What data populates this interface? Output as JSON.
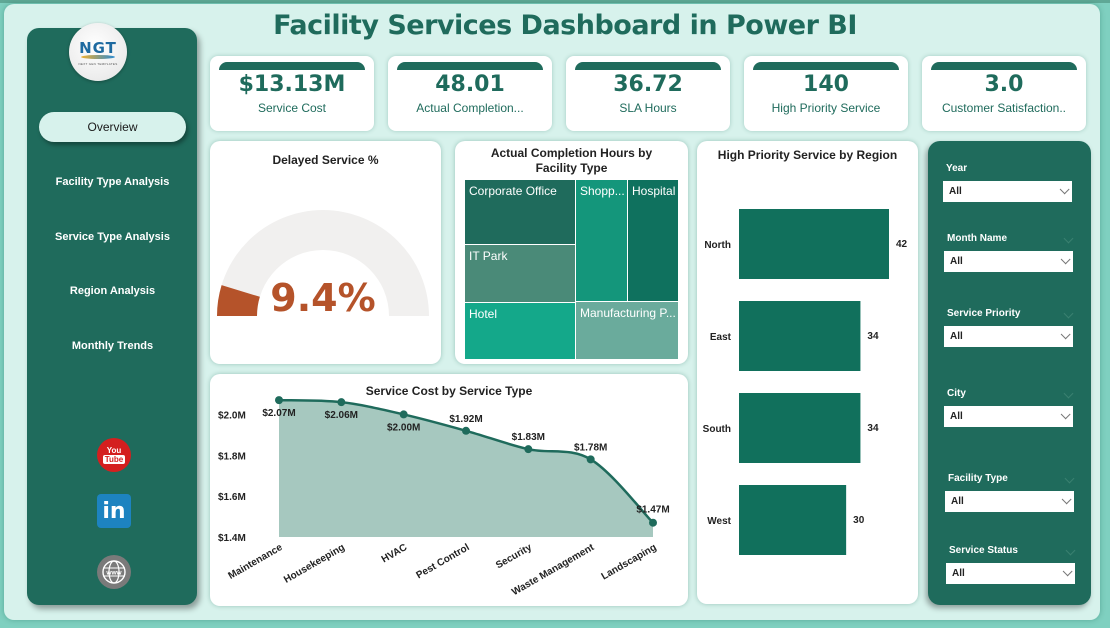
{
  "header": {
    "title": "Facility Services Dashboard in Power BI"
  },
  "logo": {
    "text": "NGT",
    "subtext": "NEXT GEN TEMPLATES"
  },
  "sidebar": {
    "items": [
      {
        "label": "Overview",
        "active": true
      },
      {
        "label": "Facility Type Analysis",
        "active": false
      },
      {
        "label": "Service Type Analysis",
        "active": false
      },
      {
        "label": "Region Analysis",
        "active": false
      },
      {
        "label": "Monthly Trends",
        "active": false
      }
    ],
    "social": [
      {
        "icon": "youtube-icon",
        "text_top": "You",
        "text_bottom": "Tube"
      },
      {
        "icon": "linkedin-icon",
        "text": "in"
      },
      {
        "icon": "globe-www-icon",
        "text": "www"
      }
    ]
  },
  "kpis": [
    {
      "value": "$13.13M",
      "label": "Service Cost"
    },
    {
      "value": "48.01",
      "label": "Actual Completion..."
    },
    {
      "value": "36.72",
      "label": "SLA Hours"
    },
    {
      "value": "140",
      "label": "High Priority Service"
    },
    {
      "value": "3.0",
      "label": "Customer Satisfaction.."
    }
  ],
  "colors": {
    "primary": "#1f6b5c",
    "gauge_fill": "#b5532a",
    "gauge_track": "#f1f0ef",
    "area_fill": "#a6c8bf",
    "bar": "#11705c"
  },
  "filters": [
    {
      "label": "Year",
      "value": "All"
    },
    {
      "label": "Month Name",
      "value": "All"
    },
    {
      "label": "Service Priority",
      "value": "All"
    },
    {
      "label": "City",
      "value": "All"
    },
    {
      "label": "Facility Type",
      "value": "All"
    },
    {
      "label": "Service Status",
      "value": "All"
    }
  ],
  "chart_data": [
    {
      "type": "gauge",
      "title": "Delayed Service %",
      "value": 9.4,
      "value_label": "9.4%",
      "min": 0,
      "max": 100
    },
    {
      "type": "treemap",
      "title": "Actual Completion Hours by Facility Type",
      "categories": [
        "Corporate Office",
        "IT Park",
        "Hotel",
        "Shopp...",
        "Hospital",
        "Manufacturing P..."
      ],
      "colors": [
        "#1f6b5c",
        "#4a8a78",
        "#14a88a",
        "#14967b",
        "#0f715e",
        "#6aab9c"
      ]
    },
    {
      "type": "bar",
      "orientation": "horizontal",
      "title": "High Priority Service by Region",
      "categories": [
        "North",
        "East",
        "South",
        "West"
      ],
      "values": [
        42,
        34,
        34,
        30
      ],
      "data_labels": [
        "42",
        "34",
        "34",
        "30"
      ]
    },
    {
      "type": "area",
      "title": "Service Cost by Service Type",
      "categories": [
        "Maintenance",
        "Housekeeping",
        "HVAC",
        "Pest Control",
        "Security",
        "Waste Management",
        "Landscaping"
      ],
      "values": [
        2.07,
        2.06,
        2.0,
        1.92,
        1.83,
        1.78,
        1.47
      ],
      "data_labels": [
        "$2.07M",
        "$2.06M",
        "$2.00M",
        "$1.92M",
        "$1.83M",
        "$1.78M",
        "$1.47M"
      ],
      "yticks": [
        "$1.4M",
        "$1.6M",
        "$1.8M",
        "$2.0M"
      ],
      "ytick_values": [
        1.4,
        1.6,
        1.8,
        2.0
      ],
      "ylim": [
        1.4,
        2.1
      ],
      "xlabel": "",
      "ylabel": ""
    }
  ]
}
